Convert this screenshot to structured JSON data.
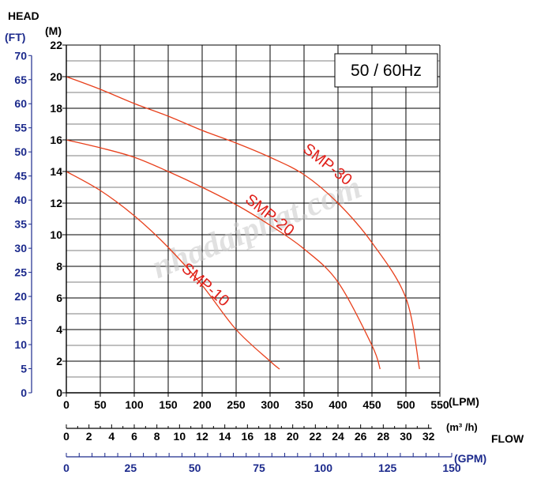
{
  "colors": {
    "curve": "#e8401c",
    "curve_label": "#e0201a",
    "axis_primary": "#000000",
    "axis_secondary": "#1c2a8c",
    "grid": "#000000",
    "watermark": "#c9c9c9"
  },
  "chart_data": {
    "type": "line",
    "title": "",
    "badge": "50 / 60Hz",
    "watermark": "nhadaiphat.com",
    "y_axis_head_label": "HEAD",
    "y_axis_m_unit": "(M)",
    "y_axis_ft_unit": "(FT)",
    "x_axis_flow_label": "FLOW",
    "x_axis_lpm_unit": "(LPM)",
    "x_axis_m3h_unit": "(m³ /h)",
    "x_axis_gpm_unit": "(GPM)",
    "xlim": [
      0,
      550
    ],
    "ylim": [
      0,
      22
    ],
    "grid": true,
    "x_ticks_lpm": [
      "0",
      "50",
      "100",
      "150",
      "200",
      "250",
      "300",
      "350",
      "400",
      "450",
      "500",
      "550"
    ],
    "y_ticks_m": [
      "0",
      "2",
      "4",
      "6",
      "8",
      "10",
      "12",
      "14",
      "16",
      "18",
      "20",
      "22"
    ],
    "y_ticks_ft": [
      "0",
      "5",
      "10",
      "15",
      "20",
      "25",
      "30",
      "35",
      "40",
      "45",
      "50",
      "55",
      "60",
      "65",
      "70"
    ],
    "x_ticks_m3h": [
      "0",
      "2",
      "4",
      "6",
      "8",
      "10",
      "12",
      "14",
      "16",
      "18",
      "20",
      "22",
      "24",
      "26",
      "28",
      "30",
      "32"
    ],
    "x_ticks_gpm": [
      "0",
      "25",
      "50",
      "75",
      "100",
      "125",
      "150"
    ],
    "series": [
      {
        "name": "SMP-10",
        "x": [
          0,
          50,
          100,
          150,
          200,
          250,
          300,
          314
        ],
        "y": [
          14,
          12.8,
          11.2,
          9.2,
          6.8,
          4.0,
          2.0,
          1.5
        ]
      },
      {
        "name": "SMP-20",
        "x": [
          0,
          50,
          100,
          150,
          200,
          250,
          300,
          350,
          400,
          450,
          462
        ],
        "y": [
          16,
          15.5,
          14.9,
          14.0,
          13.0,
          11.9,
          10.6,
          9.1,
          7.0,
          3.0,
          1.5
        ]
      },
      {
        "name": "SMP-30",
        "x": [
          0,
          50,
          100,
          150,
          200,
          250,
          300,
          350,
          400,
          450,
          500,
          520
        ],
        "y": [
          20,
          19.2,
          18.3,
          17.5,
          16.6,
          15.8,
          14.9,
          13.8,
          12.0,
          9.5,
          6.0,
          1.5
        ]
      }
    ]
  }
}
